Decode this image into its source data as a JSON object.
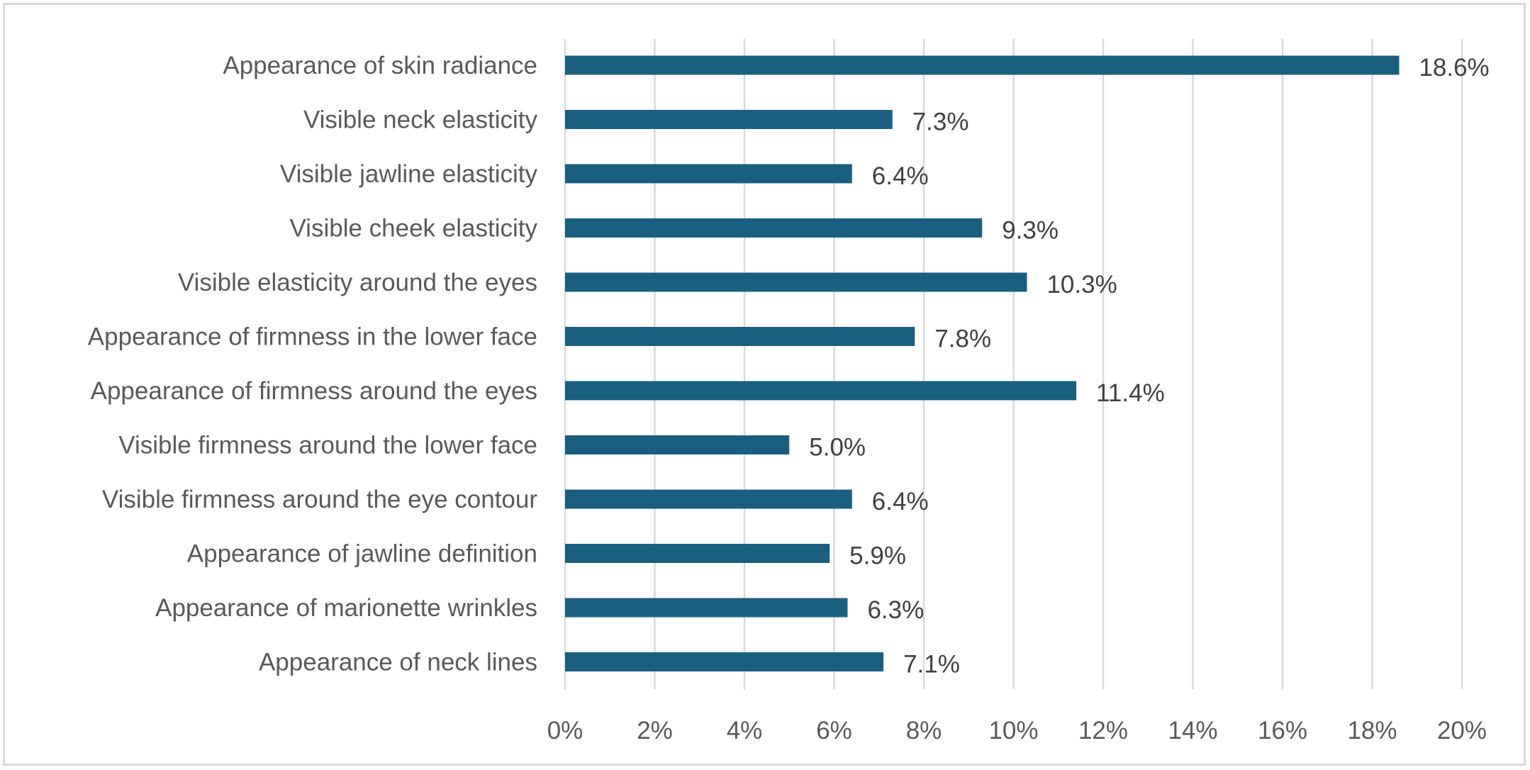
{
  "chart_data": {
    "type": "bar",
    "orientation": "horizontal",
    "categories": [
      "Appearance of skin radiance",
      "Visible neck elasticity",
      "Visible jawline elasticity",
      "Visible cheek elasticity",
      "Visible elasticity around the eyes",
      "Appearance of firmness in the lower face",
      "Appearance of firmness around the eyes",
      "Visible firmness around the lower face",
      "Visible firmness around the eye contour",
      "Appearance of jawline definition",
      "Appearance of marionette wrinkles",
      "Appearance of neck lines"
    ],
    "values": [
      18.6,
      7.3,
      6.4,
      9.3,
      10.3,
      7.8,
      11.4,
      5.0,
      6.4,
      5.9,
      6.3,
      7.1
    ],
    "data_labels": [
      "18.6%",
      "7.3%",
      "6.4%",
      "9.3%",
      "10.3%",
      "7.8%",
      "11.4%",
      "5.0%",
      "6.4%",
      "5.9%",
      "6.3%",
      "7.1%"
    ],
    "x_ticks": [
      "0%",
      "2%",
      "4%",
      "6%",
      "8%",
      "10%",
      "12%",
      "14%",
      "16%",
      "18%",
      "20%"
    ],
    "xlim": [
      0,
      20
    ],
    "grid": true,
    "legend": "none",
    "bar_color": "#1a5f7f",
    "gridline_color": "#d9d9d9",
    "title": "",
    "xlabel": "",
    "ylabel": ""
  }
}
